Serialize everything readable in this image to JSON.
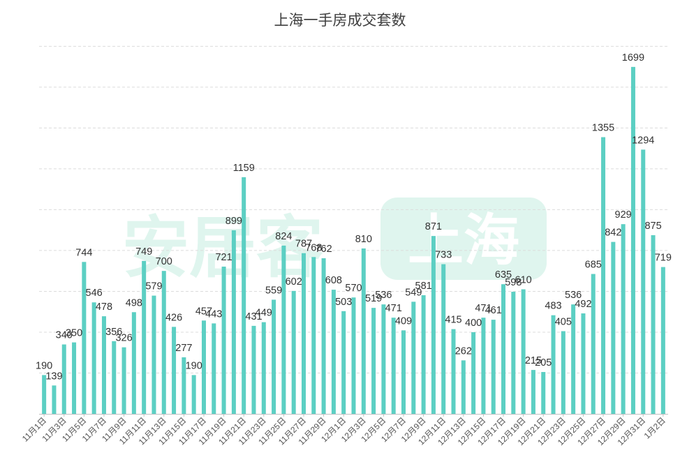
{
  "chart_data": {
    "type": "bar",
    "title": "上海一手房成交套数",
    "categories": [
      "11月1日",
      "11月2日",
      "11月3日",
      "11月4日",
      "11月5日",
      "11月6日",
      "11月7日",
      "11月8日",
      "11月9日",
      "11月10日",
      "11月11日",
      "11月12日",
      "11月13日",
      "11月14日",
      "11月15日",
      "11月16日",
      "11月17日",
      "11月18日",
      "11月19日",
      "11月20日",
      "11月21日",
      "11月22日",
      "11月23日",
      "11月24日",
      "11月25日",
      "11月26日",
      "11月27日",
      "11月28日",
      "11月29日",
      "11月30日",
      "12月1日",
      "12月2日",
      "12月3日",
      "12月4日",
      "12月5日",
      "12月6日",
      "12月7日",
      "12月8日",
      "12月9日",
      "12月10日",
      "12月11日",
      "12月12日",
      "12月13日",
      "12月14日",
      "12月15日",
      "12月16日",
      "12月17日",
      "12月18日",
      "12月19日",
      "12月20日",
      "12月21日",
      "12月22日",
      "12月23日",
      "12月24日",
      "12月25日",
      "12月26日",
      "12月27日",
      "12月28日",
      "12月29日",
      "12月30日",
      "12月31日",
      "1月1日",
      "1月2日"
    ],
    "values": [
      190,
      139,
      340,
      350,
      744,
      546,
      478,
      356,
      326,
      498,
      749,
      579,
      700,
      426,
      277,
      190,
      457,
      443,
      721,
      899,
      1159,
      431,
      449,
      559,
      824,
      602,
      787,
      768,
      762,
      608,
      503,
      570,
      810,
      519,
      536,
      471,
      409,
      549,
      581,
      871,
      733,
      415,
      262,
      400,
      471,
      461,
      635,
      598,
      610,
      215,
      205,
      483,
      405,
      536,
      492,
      685,
      1355,
      842,
      929,
      1699,
      1294,
      875,
      719
    ],
    "tick_labels": [
      "11月1日",
      "11月3日",
      "11月5日",
      "11月7日",
      "11月9日",
      "11月11日",
      "11月13日",
      "11月15日",
      "11月17日",
      "11月19日",
      "11月21日",
      "11月23日",
      "11月25日",
      "11月27日",
      "11月29日",
      "12月1日",
      "12月3日",
      "12月5日",
      "12月7日",
      "12月9日",
      "12月11日",
      "12月13日",
      "12月15日",
      "12月17日",
      "12月19日",
      "12月21日",
      "12月23日",
      "12月25日",
      "12月27日",
      "12月29日",
      "12月31日",
      "1月2日"
    ],
    "ylim": [
      0,
      1800
    ],
    "grid": true,
    "legend": "none",
    "bar_color": "#5ccfc3"
  },
  "watermark": {
    "text": "安居客",
    "badge": "上海",
    "color": "#dff5ee"
  }
}
